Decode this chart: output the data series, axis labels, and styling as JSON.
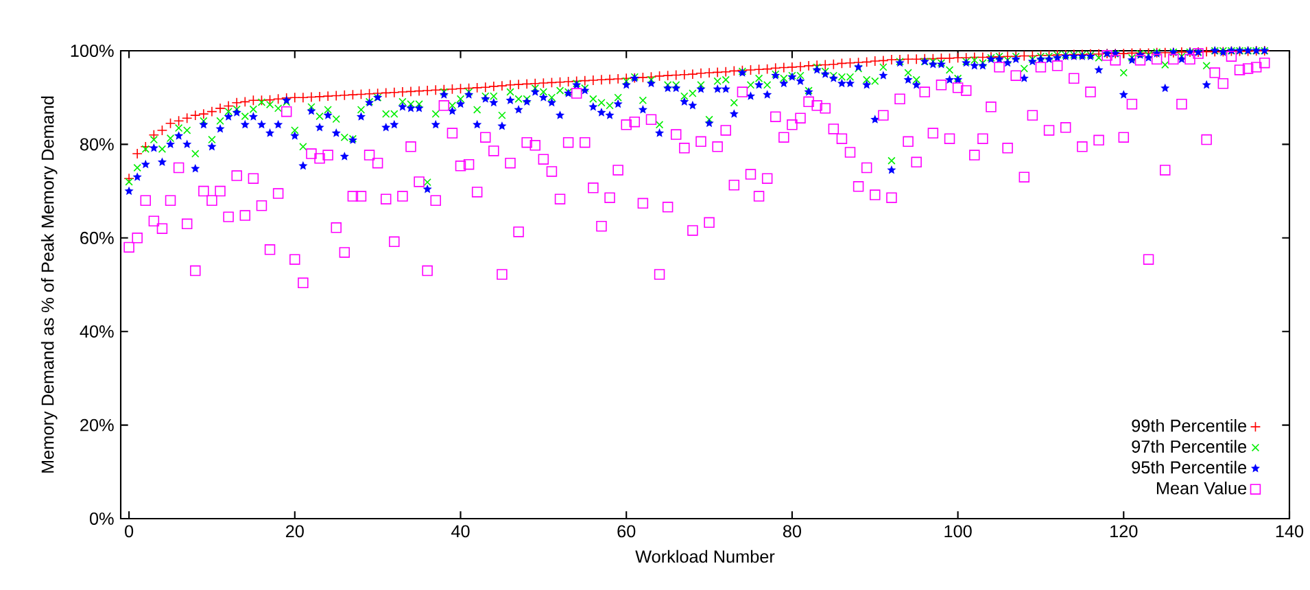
{
  "chart_data": {
    "type": "scatter",
    "xlabel": "Workload Number",
    "ylabel": "Memory Demand as % of Peak Memory Demand",
    "x": [
      0,
      1,
      2,
      3,
      4,
      5,
      6,
      7,
      8,
      9,
      10,
      11,
      12,
      13,
      14,
      15,
      16,
      17,
      18,
      19,
      20,
      21,
      22,
      23,
      24,
      25,
      26,
      27,
      28,
      29,
      30,
      31,
      32,
      33,
      34,
      35,
      36,
      37,
      38,
      39,
      40,
      41,
      42,
      43,
      44,
      45,
      46,
      47,
      48,
      49,
      50,
      51,
      52,
      53,
      54,
      55,
      56,
      57,
      58,
      59,
      60,
      61,
      62,
      63,
      64,
      65,
      66,
      67,
      68,
      69,
      70,
      71,
      72,
      73,
      74,
      75,
      76,
      77,
      78,
      79,
      80,
      81,
      82,
      83,
      84,
      85,
      86,
      87,
      88,
      89,
      90,
      91,
      92,
      93,
      94,
      95,
      96,
      97,
      98,
      99,
      100,
      101,
      102,
      103,
      104,
      105,
      106,
      107,
      108,
      109,
      110,
      111,
      112,
      113,
      114,
      115,
      116,
      117,
      118,
      119,
      120,
      121,
      122,
      123,
      124,
      125,
      126,
      127,
      128,
      129,
      130,
      131,
      132,
      133,
      134,
      135,
      136,
      137
    ],
    "series": [
      {
        "name": "99th Percentile",
        "color": "#ff0000",
        "marker": "plus",
        "values": [
          72.7,
          78,
          79.5,
          82,
          83,
          84.5,
          85,
          85.6,
          86.2,
          86.5,
          87,
          87.7,
          88.2,
          88.9,
          89.1,
          89.4,
          89.4,
          89.5,
          89.7,
          89.9,
          90,
          90,
          90.1,
          90.2,
          90.3,
          90.4,
          90.5,
          90.6,
          90.7,
          90.8,
          90.9,
          91,
          91.1,
          91.2,
          91.3,
          91.4,
          91.5,
          91.6,
          91.7,
          91.8,
          91.9,
          92,
          92.1,
          92.2,
          92.4,
          92.5,
          92.7,
          92.8,
          92.9,
          93,
          93.1,
          93.2,
          93.3,
          93.4,
          93.5,
          93.6,
          93.7,
          93.8,
          93.9,
          94,
          94.1,
          94.2,
          94.3,
          94.4,
          94.6,
          94.7,
          94.8,
          94.9,
          95,
          95.2,
          95.3,
          95.4,
          95.5,
          95.7,
          95.8,
          95.9,
          96,
          96.1,
          96.3,
          96.4,
          96.5,
          96.6,
          96.8,
          96.9,
          97,
          97.1,
          97.3,
          97.4,
          97.5,
          97.6,
          97.8,
          97.9,
          98.1,
          98.1,
          98.2,
          98.2,
          98.3,
          98.3,
          98.4,
          98.4,
          98.5,
          98.5,
          98.6,
          98.6,
          98.7,
          98.7,
          98.8,
          98.8,
          98.9,
          98.9,
          99,
          99,
          99.1,
          99.1,
          99.2,
          99.2,
          99.3,
          99.3,
          99.4,
          99.4,
          99.4,
          99.5,
          99.5,
          99.5,
          99.6,
          99.6,
          99.6,
          99.7,
          99.7,
          99.7,
          99.8,
          99.8,
          99.8,
          99.9,
          99.9,
          99.9,
          100,
          100
        ]
      },
      {
        "name": "97th Percentile",
        "color": "#00ee00",
        "marker": "cross",
        "values": [
          72,
          75,
          79,
          81,
          79,
          81.3,
          83.5,
          83,
          78,
          85,
          81,
          85,
          87,
          87.5,
          86,
          87.5,
          89,
          88.5,
          87.7,
          89,
          83,
          79.5,
          88,
          86,
          87.4,
          85.4,
          81.5,
          81.2,
          87.4,
          89.1,
          90,
          86.5,
          86.5,
          89.1,
          88.6,
          88.6,
          71.9,
          86.5,
          91.2,
          88.3,
          89.7,
          91.2,
          87.4,
          90.3,
          90.3,
          86.2,
          91.2,
          89.7,
          89.7,
          92,
          91.2,
          90,
          91.5,
          91.2,
          93,
          92,
          89.7,
          88.9,
          88.3,
          90,
          93.5,
          94.4,
          89.4,
          93.8,
          84.2,
          92.7,
          92.7,
          90.3,
          90.9,
          92.7,
          85.3,
          93.5,
          93.8,
          88.9,
          95.6,
          92.7,
          94.1,
          92.7,
          95,
          94.1,
          94.7,
          94.7,
          91.5,
          96.5,
          95.6,
          94.7,
          94.4,
          94.4,
          96.2,
          93.8,
          93.5,
          96.5,
          76.5,
          97.7,
          95.3,
          93.8,
          97.7,
          97.7,
          97.4,
          95.9,
          94.1,
          97.7,
          98,
          97.4,
          98.5,
          98.8,
          98,
          98.8,
          96.2,
          98.2,
          98.8,
          98.8,
          99.1,
          99.1,
          99.1,
          99.1,
          99.1,
          98.5,
          99.4,
          99.4,
          95.3,
          98.5,
          99.4,
          99.1,
          99.7,
          97,
          99.7,
          98.8,
          99.7,
          99.7,
          96.8,
          100,
          100,
          100,
          100,
          100,
          100,
          100
        ]
      },
      {
        "name": "95th Percentile",
        "color": "#0000ff",
        "marker": "star",
        "values": [
          70,
          73,
          75.7,
          79.2,
          76.2,
          80,
          81.8,
          80,
          74.8,
          84.2,
          79.5,
          83.3,
          85.9,
          86.8,
          84.2,
          85.9,
          84.2,
          82.4,
          84.2,
          89.4,
          81.8,
          75.4,
          87.1,
          83.6,
          86.2,
          82.4,
          77.4,
          80.9,
          85.9,
          88.9,
          90,
          83.6,
          84.2,
          88,
          87.7,
          87.7,
          70.4,
          84.2,
          90.6,
          87.1,
          88.6,
          90.6,
          84.2,
          89.7,
          88.9,
          83.9,
          89.4,
          87.4,
          89.1,
          91.2,
          90,
          88.9,
          86.2,
          90.9,
          92.7,
          91.5,
          88,
          86.8,
          86.2,
          88.6,
          92.7,
          94.1,
          87.4,
          93,
          82.4,
          92,
          92,
          89.1,
          88.3,
          91.8,
          84.5,
          91.8,
          91.8,
          86.5,
          95.3,
          90.3,
          92.7,
          90.6,
          94.7,
          93,
          94.4,
          93.5,
          91.2,
          95.9,
          95,
          94.1,
          93,
          93,
          96.5,
          92.7,
          85.3,
          94.7,
          74.5,
          97.4,
          93.8,
          92.7,
          97.7,
          97.1,
          97.1,
          93.8,
          93.8,
          97.4,
          96.8,
          96.8,
          98.2,
          98.2,
          97.4,
          98.2,
          94.1,
          97.7,
          98.2,
          98.2,
          98.5,
          98.8,
          98.8,
          98.8,
          98.8,
          95.9,
          99.4,
          99.4,
          90.6,
          98,
          99.1,
          98.5,
          99.4,
          92,
          99.7,
          98.2,
          99.7,
          99.7,
          92.7,
          100,
          99.7,
          100,
          100,
          100,
          100,
          100
        ]
      },
      {
        "name": "Mean Value",
        "color": "#ff00ff",
        "marker": "square",
        "values": [
          58,
          60,
          68,
          63.6,
          62,
          68,
          75,
          63,
          53,
          70,
          68,
          70,
          64.5,
          73.3,
          64.8,
          72.7,
          66.9,
          57.5,
          69.5,
          87,
          55.4,
          50.4,
          78,
          77,
          77.7,
          62.2,
          56.9,
          68.9,
          68.9,
          77.7,
          76,
          68.3,
          59.2,
          68.9,
          79.5,
          72,
          53,
          68,
          88.3,
          82.4,
          75.4,
          75.7,
          69.8,
          81.5,
          78.6,
          52.2,
          76,
          61.3,
          80.4,
          79.8,
          76.8,
          74.2,
          68.3,
          80.4,
          90.9,
          80.4,
          70.7,
          62.5,
          68.6,
          74.5,
          84.2,
          84.8,
          67.4,
          85.3,
          52.2,
          66.6,
          82.1,
          79.2,
          61.6,
          80.6,
          63.3,
          79.5,
          83,
          71.3,
          91.2,
          73.6,
          68.9,
          72.7,
          85.9,
          81.5,
          84.2,
          85.6,
          89.1,
          88.3,
          87.7,
          83.3,
          81.2,
          78.3,
          71,
          75,
          69.2,
          86.2,
          68.6,
          89.7,
          80.6,
          76.2,
          91.2,
          82.4,
          92.7,
          81.2,
          92.1,
          91.5,
          77.7,
          81.2,
          88,
          96.5,
          79.2,
          94.7,
          73,
          86.2,
          96.5,
          83,
          96.8,
          83.6,
          94.1,
          79.5,
          91.2,
          80.9,
          99,
          98,
          81.5,
          88.6,
          98,
          55.4,
          98.2,
          74.5,
          98.2,
          88.6,
          98.2,
          99.4,
          81,
          95.3,
          93,
          98.8,
          95.9,
          96.2,
          96.5,
          97.4
        ]
      }
    ],
    "xlim": [
      -1,
      140
    ],
    "xticks": [
      0,
      20,
      40,
      60,
      80,
      100,
      120,
      140
    ],
    "ylim": [
      0,
      100
    ],
    "yticks": [
      {
        "value": 0,
        "label": "0%"
      },
      {
        "value": 20,
        "label": "20%"
      },
      {
        "value": 40,
        "label": "40%"
      },
      {
        "value": 60,
        "label": "60%"
      },
      {
        "value": 80,
        "label": "80%"
      },
      {
        "value": 100,
        "label": "100%"
      }
    ],
    "legend": "bottom right"
  }
}
